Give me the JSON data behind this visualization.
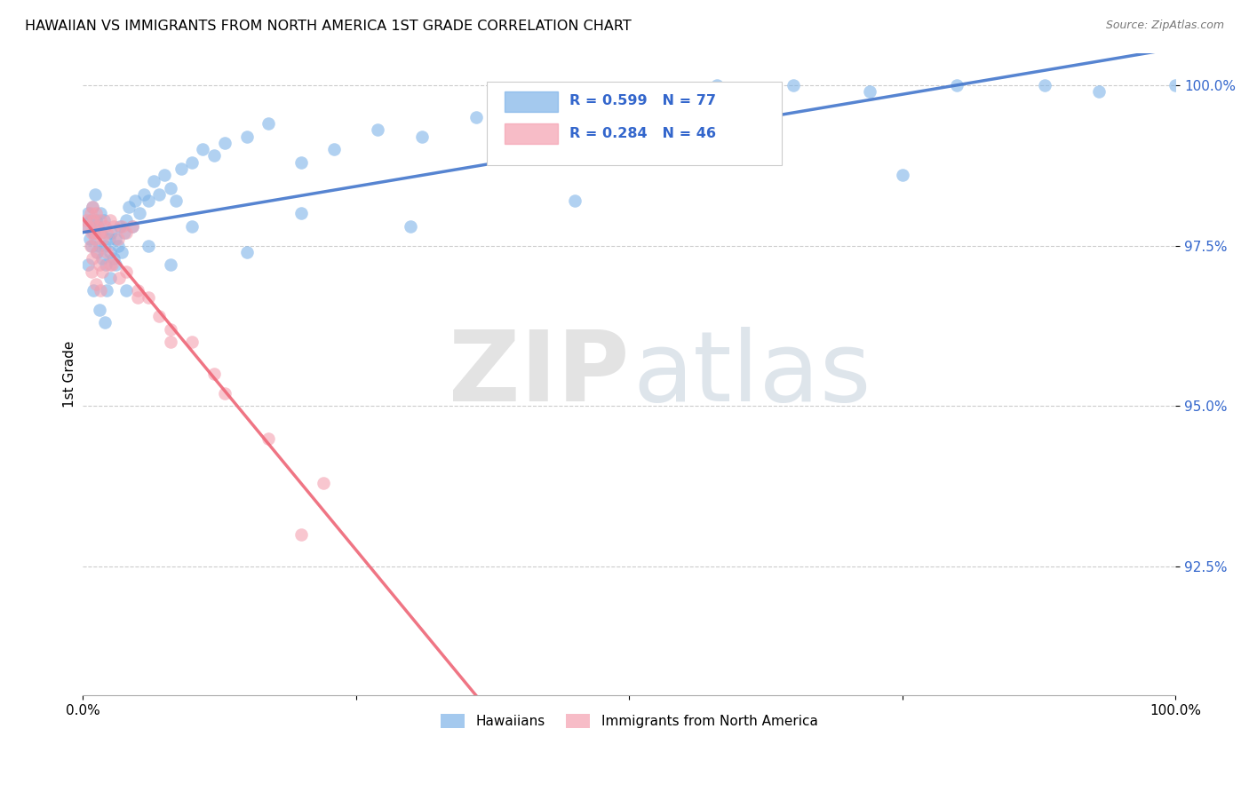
{
  "title": "HAWAIIAN VS IMMIGRANTS FROM NORTH AMERICA 1ST GRADE CORRELATION CHART",
  "source": "Source: ZipAtlas.com",
  "ylabel": "1st Grade",
  "xlim": [
    0.0,
    1.0
  ],
  "ylim": [
    0.905,
    1.005
  ],
  "ytick_vals": [
    0.925,
    0.95,
    0.975,
    1.0
  ],
  "ytick_labels": [
    "92.5%",
    "95.0%",
    "97.5%",
    "100.0%"
  ],
  "blue_color": "#7EB3E8",
  "pink_color": "#F4A0B0",
  "trendline_blue": "#4477CC",
  "trendline_pink": "#EE6677",
  "R_blue": 0.599,
  "N_blue": 77,
  "R_pink": 0.284,
  "N_pink": 46,
  "legend_label_blue": "Hawaiians",
  "legend_label_pink": "Immigrants from North America",
  "blue_x": [
    0.003,
    0.005,
    0.006,
    0.007,
    0.008,
    0.009,
    0.01,
    0.011,
    0.012,
    0.013,
    0.014,
    0.015,
    0.016,
    0.017,
    0.018,
    0.019,
    0.02,
    0.021,
    0.022,
    0.024,
    0.025,
    0.026,
    0.028,
    0.03,
    0.032,
    0.034,
    0.036,
    0.038,
    0.04,
    0.042,
    0.045,
    0.048,
    0.052,
    0.056,
    0.06,
    0.065,
    0.07,
    0.075,
    0.08,
    0.085,
    0.09,
    0.1,
    0.11,
    0.12,
    0.13,
    0.15,
    0.17,
    0.2,
    0.23,
    0.27,
    0.31,
    0.36,
    0.42,
    0.5,
    0.58,
    0.65,
    0.72,
    0.8,
    0.88,
    0.93,
    0.005,
    0.01,
    0.015,
    0.02,
    0.025,
    0.03,
    0.04,
    0.06,
    0.08,
    0.1,
    0.15,
    0.2,
    0.3,
    0.45,
    0.6,
    0.75,
    1.0
  ],
  "blue_y": [
    0.978,
    0.98,
    0.976,
    0.979,
    0.975,
    0.981,
    0.977,
    0.983,
    0.979,
    0.974,
    0.978,
    0.975,
    0.98,
    0.977,
    0.973,
    0.979,
    0.975,
    0.972,
    0.968,
    0.976,
    0.974,
    0.977,
    0.973,
    0.976,
    0.975,
    0.978,
    0.974,
    0.977,
    0.979,
    0.981,
    0.978,
    0.982,
    0.98,
    0.983,
    0.982,
    0.985,
    0.983,
    0.986,
    0.984,
    0.982,
    0.987,
    0.988,
    0.99,
    0.989,
    0.991,
    0.992,
    0.994,
    0.988,
    0.99,
    0.993,
    0.992,
    0.995,
    0.997,
    0.999,
    1.0,
    1.0,
    0.999,
    1.0,
    1.0,
    0.999,
    0.972,
    0.968,
    0.965,
    0.963,
    0.97,
    0.972,
    0.968,
    0.975,
    0.972,
    0.978,
    0.974,
    0.98,
    0.978,
    0.982,
    0.99,
    0.986,
    1.0
  ],
  "pink_x": [
    0.003,
    0.005,
    0.007,
    0.008,
    0.009,
    0.01,
    0.011,
    0.012,
    0.013,
    0.015,
    0.016,
    0.018,
    0.02,
    0.022,
    0.025,
    0.028,
    0.032,
    0.036,
    0.04,
    0.045,
    0.007,
    0.009,
    0.011,
    0.013,
    0.015,
    0.018,
    0.022,
    0.027,
    0.033,
    0.04,
    0.05,
    0.06,
    0.08,
    0.1,
    0.13,
    0.17,
    0.22,
    0.12,
    0.07,
    0.05,
    0.008,
    0.012,
    0.016,
    0.025,
    0.08,
    0.2
  ],
  "pink_y": [
    0.979,
    0.978,
    0.98,
    0.977,
    0.981,
    0.979,
    0.977,
    0.98,
    0.978,
    0.977,
    0.979,
    0.976,
    0.978,
    0.977,
    0.979,
    0.978,
    0.976,
    0.978,
    0.977,
    0.978,
    0.975,
    0.973,
    0.976,
    0.974,
    0.972,
    0.971,
    0.974,
    0.972,
    0.97,
    0.971,
    0.968,
    0.967,
    0.962,
    0.96,
    0.952,
    0.945,
    0.938,
    0.955,
    0.964,
    0.967,
    0.971,
    0.969,
    0.968,
    0.972,
    0.96,
    0.93
  ]
}
